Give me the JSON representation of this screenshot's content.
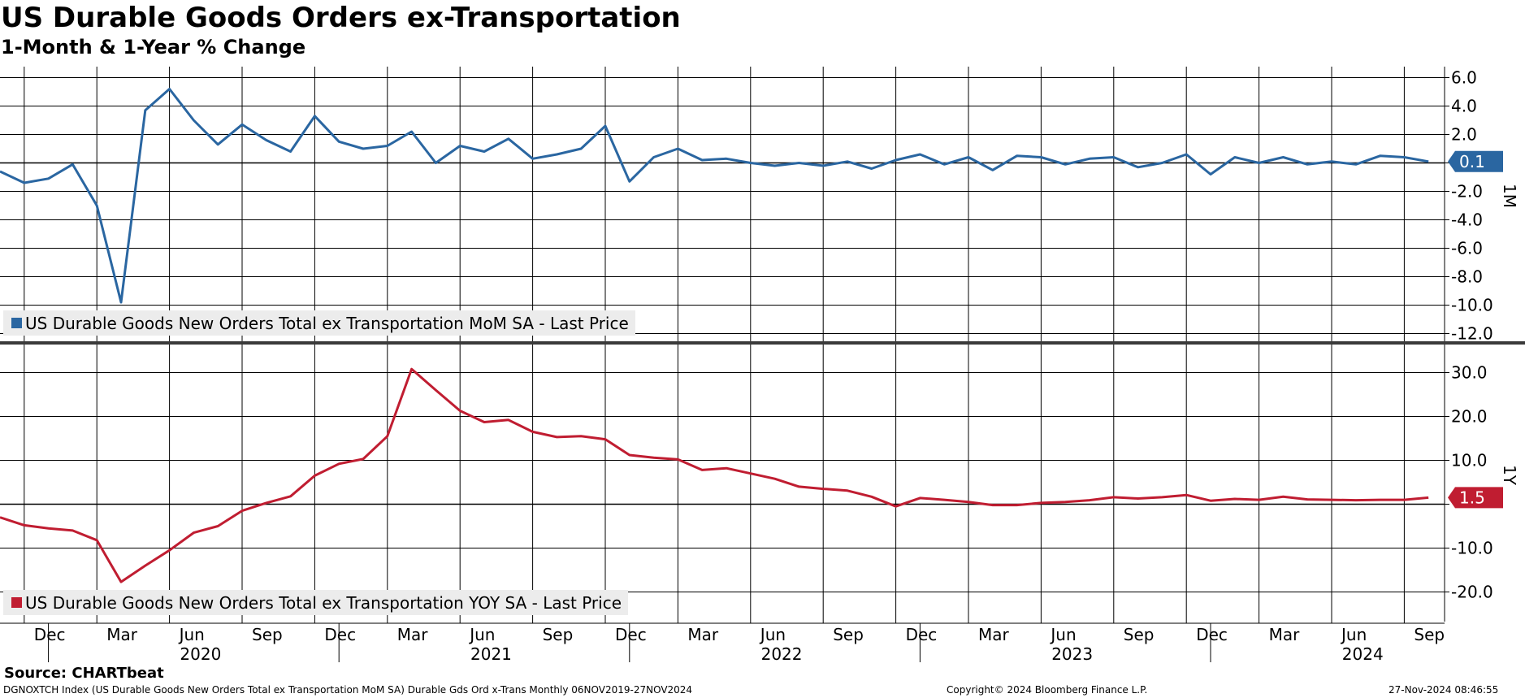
{
  "header": {
    "title": "US Durable Goods Orders ex-Transportation",
    "subtitle": "1-Month & 1-Year % Change"
  },
  "footer": {
    "source": "Source: CHARTbeat",
    "ticker_note": "DGNOXTCH Index (US Durable Goods New Orders Total ex Transportation MoM SA) Durable Gds Ord x-Trans  Monthly 06NOV2019-27NOV2024",
    "copyright": "Copyright© 2024 Bloomberg Finance L.P.",
    "timestamp": "27-Nov-2024 08:46:55"
  },
  "colors": {
    "mom_series": "#2a66a1",
    "yoy_series": "#c01d31",
    "grid": "#000000",
    "separator": "#3a3a3a",
    "legend_bg": "#ececec"
  },
  "chart_data": [
    {
      "type": "line",
      "panel_label": "1M",
      "x_start": "2019-11",
      "x_end": "2024-10",
      "ylim": [
        -13,
        7
      ],
      "yticks": [
        6.0,
        4.0,
        2.0,
        0,
        -2.0,
        -4.0,
        -6.0,
        -8.0,
        -10.0,
        -12.0
      ],
      "ytick_labels": [
        "6.0",
        "4.0",
        "2.0",
        "",
        "-2.0",
        "-4.0",
        "-6.0",
        "-8.0",
        "-10.0",
        "-12.0"
      ],
      "last_value_label": "0.1",
      "series": [
        {
          "name": "US Durable Goods New Orders Total ex Transportation MoM SA - Last Price",
          "values": [
            -0.6,
            -1.4,
            -1.1,
            -0.1,
            -3.0,
            -9.8,
            3.7,
            5.2,
            3.0,
            1.3,
            2.7,
            1.6,
            0.8,
            3.3,
            1.5,
            1.0,
            1.2,
            2.2,
            0.0,
            1.2,
            0.8,
            1.7,
            0.3,
            0.6,
            1.0,
            2.6,
            -1.3,
            0.4,
            1.0,
            0.2,
            0.3,
            0.0,
            -0.2,
            0.0,
            -0.2,
            0.1,
            -0.4,
            0.2,
            0.6,
            -0.1,
            0.4,
            -0.5,
            0.5,
            0.4,
            -0.1,
            0.3,
            0.4,
            -0.3,
            0.0,
            0.6,
            -0.8,
            0.4,
            0.0,
            0.4,
            -0.1,
            0.1,
            -0.1,
            0.5,
            0.4,
            0.1
          ]
        }
      ]
    },
    {
      "type": "line",
      "panel_label": "1Y",
      "x_start": "2019-11",
      "x_end": "2024-10",
      "ylim": [
        -26,
        36
      ],
      "yticks": [
        30.0,
        20.0,
        10.0,
        0,
        -10.0,
        -20.0
      ],
      "ytick_labels": [
        "30.0",
        "20.0",
        "10.0",
        "",
        "-10.0",
        "-20.0"
      ],
      "last_value_label": "1.5",
      "series": [
        {
          "name": "US Durable Goods New Orders Total ex Transportation YOY SA - Last Price",
          "values": [
            -3.0,
            -4.8,
            -5.5,
            -6.0,
            -8.2,
            -17.7,
            -14.0,
            -10.5,
            -6.5,
            -5.0,
            -1.5,
            0.3,
            1.8,
            6.5,
            9.2,
            10.3,
            15.5,
            30.8,
            26.0,
            21.3,
            18.7,
            19.2,
            16.5,
            15.3,
            15.5,
            14.8,
            11.2,
            10.6,
            10.2,
            7.8,
            8.2,
            7.0,
            5.8,
            4.0,
            3.5,
            3.1,
            1.7,
            -0.5,
            1.4,
            1.0,
            0.5,
            -0.2,
            -0.2,
            0.3,
            0.5,
            0.9,
            1.6,
            1.3,
            1.6,
            2.1,
            0.8,
            1.2,
            1.0,
            1.7,
            1.1,
            1.0,
            0.9,
            1.0,
            1.0,
            1.5
          ]
        }
      ]
    }
  ],
  "x_axis": {
    "month_labels": [
      "Dec",
      "Mar",
      "Jun",
      "Sep",
      "Dec",
      "Mar",
      "Jun",
      "Sep",
      "Dec",
      "Mar",
      "Jun",
      "Sep",
      "Dec",
      "Mar",
      "Jun",
      "Sep",
      "Dec",
      "Mar",
      "Jun",
      "Sep"
    ],
    "year_labels": [
      "2020",
      "2021",
      "2022",
      "2023",
      "2024"
    ]
  }
}
